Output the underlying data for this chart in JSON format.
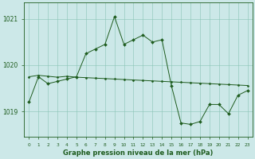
{
  "xlabel": "Graphe pression niveau de la mer (hPa)",
  "background_color": "#cce8e8",
  "line_color": "#1e5c1e",
  "grid_color": "#88c4b4",
  "hours": [
    0,
    1,
    2,
    3,
    4,
    5,
    6,
    7,
    8,
    9,
    10,
    11,
    12,
    13,
    14,
    15,
    16,
    17,
    18,
    19,
    20,
    21,
    22,
    23
  ],
  "series_variable": [
    1019.2,
    1019.75,
    1019.6,
    1019.65,
    1019.7,
    1019.75,
    1020.25,
    1020.35,
    1020.45,
    1021.05,
    1020.45,
    1020.55,
    1020.65,
    1020.5,
    1020.55,
    1019.55,
    1018.75,
    1018.72,
    1018.78,
    1019.15,
    1019.15,
    1018.95,
    1019.35,
    1019.45
  ],
  "series_trend": [
    1019.75,
    1019.78,
    1019.76,
    1019.74,
    1019.76,
    1019.74,
    1019.73,
    1019.72,
    1019.71,
    1019.7,
    1019.69,
    1019.68,
    1019.67,
    1019.66,
    1019.65,
    1019.64,
    1019.63,
    1019.62,
    1019.61,
    1019.6,
    1019.59,
    1019.58,
    1019.57,
    1019.56
  ],
  "ylim_min": 1018.45,
  "ylim_max": 1021.35,
  "yticks": [
    1019,
    1020,
    1021
  ],
  "ytick_labels": [
    "1019",
    "1020",
    "1021"
  ],
  "xlim_min": -0.5,
  "xlim_max": 23.5,
  "marker": "D",
  "markersize_variable": 2.0,
  "markersize_trend": 1.5,
  "linewidth": 0.7,
  "xlabel_fontsize": 6.0,
  "ytick_fontsize": 5.5,
  "xtick_fontsize": 4.2
}
